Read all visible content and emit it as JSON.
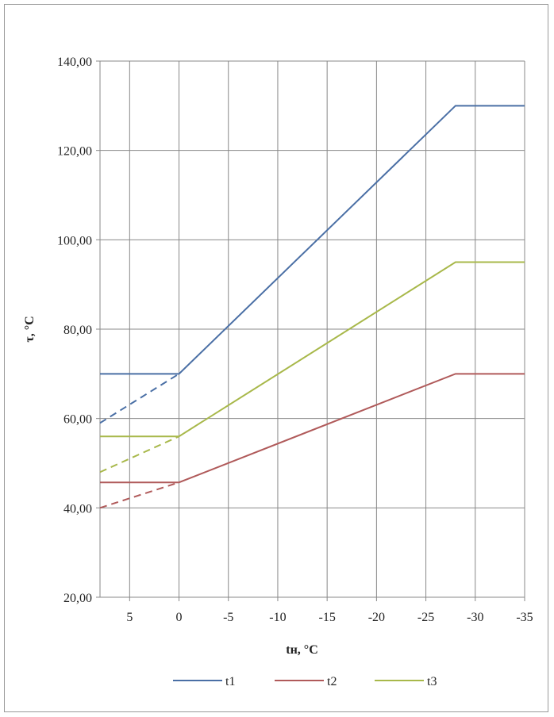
{
  "chart_data": {
    "type": "line",
    "xlabel": "tн, °C",
    "ylabel": "τ, °C",
    "xlim": [
      8,
      -35
    ],
    "ylim": [
      20,
      140
    ],
    "x_ticks": [
      5,
      0,
      -5,
      -10,
      -15,
      -20,
      -25,
      -30,
      -35
    ],
    "x_tick_labels": [
      "5",
      "0",
      "-5",
      "-10",
      "-15",
      "-20",
      "-25",
      "-30",
      "-35"
    ],
    "y_ticks": [
      20,
      40,
      60,
      80,
      100,
      120,
      140
    ],
    "y_tick_labels": [
      "20,00",
      "40,00",
      "60,00",
      "80,00",
      "100,00",
      "120,00",
      "140,00"
    ],
    "grid": true,
    "legend_position": "bottom",
    "series": [
      {
        "name": "t1",
        "color": "#4a6fa5",
        "points": [
          [
            8,
            70
          ],
          [
            0,
            70
          ],
          [
            -28,
            130
          ],
          [
            -35,
            130
          ]
        ],
        "dashed_extension": [
          [
            8,
            59
          ],
          [
            0,
            70
          ]
        ]
      },
      {
        "name": "t2",
        "color": "#b05a5a",
        "points": [
          [
            8,
            45.7
          ],
          [
            0,
            45.7
          ],
          [
            -28,
            70
          ],
          [
            -35,
            70
          ]
        ],
        "dashed_extension": [
          [
            8,
            40
          ],
          [
            0,
            45.7
          ]
        ]
      },
      {
        "name": "t3",
        "color": "#a8b84a",
        "points": [
          [
            8,
            56
          ],
          [
            0,
            56
          ],
          [
            -28,
            95
          ],
          [
            -35,
            95
          ]
        ],
        "dashed_extension": [
          [
            8,
            48
          ],
          [
            0,
            56
          ]
        ]
      }
    ]
  }
}
